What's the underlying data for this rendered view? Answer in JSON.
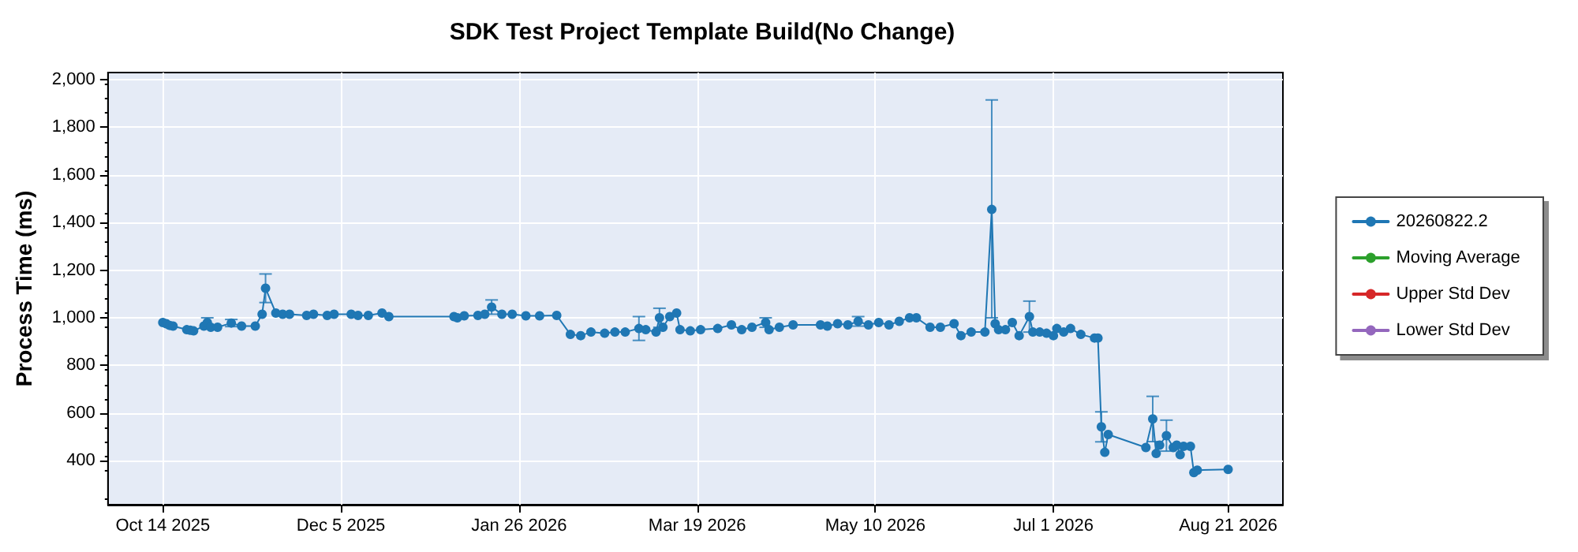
{
  "chart_data": {
    "type": "line",
    "title": "SDK Test Project Template Build(No Change)",
    "ylabel": "Process Time (ms)",
    "x": [
      "2025-10-14",
      "2025-10-15",
      "2025-10-16",
      "2025-10-17",
      "2025-10-21",
      "2025-10-22",
      "2025-10-23",
      "2025-10-26",
      "2025-10-27",
      "2025-10-28",
      "2025-10-30",
      "2025-11-03",
      "2025-11-06",
      "2025-11-10",
      "2025-11-12",
      "2025-11-13",
      "2025-11-16",
      "2025-11-18",
      "2025-11-20",
      "2025-11-25",
      "2025-11-27",
      "2025-12-01",
      "2025-12-03",
      "2025-12-08",
      "2025-12-10",
      "2025-12-13",
      "2025-12-17",
      "2025-12-19",
      "2026-01-07",
      "2026-01-08",
      "2026-01-10",
      "2026-01-14",
      "2026-01-16",
      "2026-01-18",
      "2026-01-21",
      "2026-01-24",
      "2026-01-28",
      "2026-02-01",
      "2026-02-06",
      "2026-02-10",
      "2026-02-13",
      "2026-02-16",
      "2026-02-20",
      "2026-02-23",
      "2026-02-26",
      "2026-03-02",
      "2026-03-04",
      "2026-03-07",
      "2026-03-08",
      "2026-03-09",
      "2026-03-11",
      "2026-03-13",
      "2026-03-14",
      "2026-03-17",
      "2026-03-20",
      "2026-03-25",
      "2026-03-29",
      "2026-04-01",
      "2026-04-04",
      "2026-04-08",
      "2026-04-09",
      "2026-04-12",
      "2026-04-16",
      "2026-04-24",
      "2026-04-26",
      "2026-04-29",
      "2026-05-02",
      "2026-05-05",
      "2026-05-08",
      "2026-05-11",
      "2026-05-14",
      "2026-05-17",
      "2026-05-20",
      "2026-05-22",
      "2026-05-26",
      "2026-05-29",
      "2026-06-02",
      "2026-06-04",
      "2026-06-07",
      "2026-06-11",
      "2026-06-13",
      "2026-06-14",
      "2026-06-15",
      "2026-06-17",
      "2026-06-19",
      "2026-06-21",
      "2026-06-24",
      "2026-06-25",
      "2026-06-27",
      "2026-06-29",
      "2026-07-01",
      "2026-07-02",
      "2026-07-04",
      "2026-07-06",
      "2026-07-09",
      "2026-07-13",
      "2026-07-14",
      "2026-07-15",
      "2026-07-16",
      "2026-07-17",
      "2026-07-28",
      "2026-07-30",
      "2026-07-31",
      "2026-08-01",
      "2026-08-03",
      "2026-08-05",
      "2026-08-06",
      "2026-08-07",
      "2026-08-08",
      "2026-08-10",
      "2026-08-11",
      "2026-08-12",
      "2026-08-21"
    ],
    "series": [
      {
        "name": "20260822.2",
        "color": "#1f77b4",
        "values": [
          980,
          975,
          968,
          965,
          950,
          948,
          945,
          965,
          980,
          960,
          960,
          978,
          965,
          965,
          1015,
          1124,
          1020,
          1015,
          1015,
          1010,
          1015,
          1010,
          1015,
          1015,
          1010,
          1010,
          1020,
          1005,
          1005,
          1000,
          1008,
          1010,
          1015,
          1045,
          1015,
          1015,
          1008,
          1008,
          1010,
          930,
          925,
          940,
          935,
          940,
          940,
          955,
          950,
          940,
          1000,
          960,
          1005,
          1020,
          950,
          945,
          950,
          955,
          970,
          950,
          960,
          980,
          950,
          960,
          970,
          970,
          965,
          975,
          970,
          985,
          970,
          980,
          970,
          985,
          1000,
          1000,
          960,
          960,
          975,
          925,
          940,
          940,
          1455,
          975,
          950,
          950,
          980,
          925,
          1005,
          940,
          940,
          935,
          925,
          955,
          940,
          955,
          930,
          915,
          915,
          542,
          435,
          510,
          455,
          575,
          430,
          465,
          505,
          455,
          465,
          425,
          460,
          460,
          350,
          360,
          363
        ],
        "errors": [
          null,
          null,
          null,
          null,
          null,
          null,
          null,
          null,
          20,
          null,
          null,
          15,
          null,
          null,
          null,
          60,
          null,
          null,
          null,
          null,
          null,
          null,
          null,
          null,
          null,
          null,
          null,
          null,
          null,
          null,
          null,
          null,
          null,
          30,
          null,
          null,
          null,
          null,
          null,
          null,
          null,
          null,
          null,
          null,
          null,
          50,
          null,
          null,
          40,
          null,
          null,
          null,
          null,
          null,
          null,
          null,
          null,
          null,
          null,
          20,
          null,
          null,
          null,
          null,
          null,
          null,
          null,
          20,
          null,
          null,
          null,
          null,
          null,
          null,
          null,
          null,
          null,
          null,
          null,
          null,
          [
            1000,
            1915
          ],
          null,
          null,
          null,
          null,
          null,
          65,
          null,
          null,
          null,
          null,
          null,
          null,
          null,
          null,
          null,
          null,
          63,
          null,
          null,
          null,
          95,
          null,
          null,
          65,
          null,
          null,
          null,
          null,
          null,
          null,
          null,
          null
        ]
      },
      {
        "name": "Moving Average",
        "color": "#2ca02c",
        "values": [
          null,
          null,
          null,
          null,
          null,
          null,
          null,
          null,
          null,
          null,
          null,
          null,
          null,
          null,
          null,
          null,
          null,
          null,
          null,
          null,
          null,
          null,
          null,
          null,
          null,
          null,
          null,
          null,
          null,
          null,
          null,
          null,
          null,
          null,
          null,
          null,
          null,
          null,
          null,
          null,
          null,
          null,
          null,
          null,
          null,
          null,
          null,
          null,
          null,
          null,
          null,
          null,
          null,
          null,
          null,
          null,
          null,
          null,
          null,
          null,
          null,
          null,
          null,
          null,
          null,
          null,
          null,
          null,
          null,
          null,
          null,
          null,
          null,
          null,
          null,
          null,
          null,
          null,
          null,
          null,
          null,
          null,
          null,
          null,
          null,
          null,
          null,
          null,
          null,
          null,
          null,
          null,
          null,
          null,
          null,
          null,
          null,
          null,
          null,
          null,
          null,
          null,
          null,
          null,
          null,
          null,
          null,
          null,
          null,
          null,
          null,
          null,
          null
        ]
      },
      {
        "name": "Upper Std Dev",
        "color": "#d62728",
        "values": [
          null,
          null,
          null,
          null,
          null,
          null,
          null,
          null,
          null,
          null,
          null,
          null,
          null,
          null,
          null,
          null,
          null,
          null,
          null,
          null,
          null,
          null,
          null,
          null,
          null,
          null,
          null,
          null,
          null,
          null,
          null,
          null,
          null,
          null,
          null,
          null,
          null,
          null,
          null,
          null,
          null,
          null,
          null,
          null,
          null,
          null,
          null,
          null,
          null,
          null,
          null,
          null,
          null,
          null,
          null,
          null,
          null,
          null,
          null,
          null,
          null,
          null,
          null,
          null,
          null,
          null,
          null,
          null,
          null,
          null,
          null,
          null,
          null,
          null,
          null,
          null,
          null,
          null,
          null,
          null,
          null,
          null,
          null,
          null,
          null,
          null,
          null,
          null,
          null,
          null,
          null,
          null,
          null,
          null,
          null,
          null,
          null,
          null,
          null,
          null,
          null,
          null,
          null,
          null,
          null,
          null,
          null,
          null,
          null,
          null,
          null,
          null,
          null
        ]
      },
      {
        "name": "Lower Std Dev",
        "color": "#9467bd",
        "values": [
          null,
          null,
          null,
          null,
          null,
          null,
          null,
          null,
          null,
          null,
          null,
          null,
          null,
          null,
          null,
          null,
          null,
          null,
          null,
          null,
          null,
          null,
          null,
          null,
          null,
          null,
          null,
          null,
          null,
          null,
          null,
          null,
          null,
          null,
          null,
          null,
          null,
          null,
          null,
          null,
          null,
          null,
          null,
          null,
          null,
          null,
          null,
          null,
          null,
          null,
          null,
          null,
          null,
          null,
          null,
          null,
          null,
          null,
          null,
          null,
          null,
          null,
          null,
          null,
          null,
          null,
          null,
          null,
          null,
          null,
          null,
          null,
          null,
          null,
          null,
          null,
          null,
          null,
          null,
          null,
          null,
          null,
          null,
          null,
          null,
          null,
          null,
          null,
          null,
          null,
          null,
          null,
          null,
          null,
          null,
          null,
          null,
          null,
          null,
          null,
          null,
          null,
          null,
          null,
          null,
          null,
          null,
          null,
          null,
          null,
          null,
          null,
          null
        ]
      }
    ],
    "xlim": [
      "2025-09-28",
      "2026-09-06"
    ],
    "xticks": [
      {
        "value": "2025-10-14",
        "label": "Oct 14 2025"
      },
      {
        "value": "2025-12-05",
        "label": "Dec 5 2025"
      },
      {
        "value": "2026-01-26",
        "label": "Jan 26 2026"
      },
      {
        "value": "2026-03-19",
        "label": "Mar 19 2026"
      },
      {
        "value": "2026-05-10",
        "label": "May 10 2026"
      },
      {
        "value": "2026-07-01",
        "label": "Jul 1 2026"
      },
      {
        "value": "2026-08-21",
        "label": "Aug 21 2026"
      }
    ],
    "ylim": [
      215,
      2030
    ],
    "yticks": [
      {
        "value": 400,
        "label": "400"
      },
      {
        "value": 600,
        "label": "600"
      },
      {
        "value": 800,
        "label": "800"
      },
      {
        "value": 1000,
        "label": "1,000"
      },
      {
        "value": 1200,
        "label": "1,200"
      },
      {
        "value": 1400,
        "label": "1,400"
      },
      {
        "value": 1600,
        "label": "1,600"
      },
      {
        "value": 1800,
        "label": "1,800"
      },
      {
        "value": 2000,
        "label": "2,000"
      }
    ],
    "grid": true,
    "legend": "right",
    "marker": "circle",
    "line_style": "solid"
  }
}
